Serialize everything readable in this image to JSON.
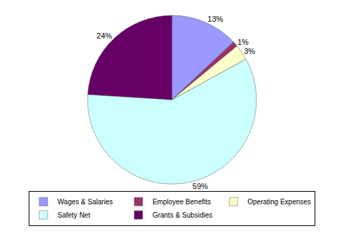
{
  "chart_data": {
    "type": "pie",
    "categories": [
      "Wages & Salaries",
      "Employee Benefits",
      "Operating Expenses",
      "Safety Net",
      "Grants & Subsidies"
    ],
    "values": [
      13,
      1,
      3,
      59,
      24
    ],
    "value_labels": [
      "13%",
      "1%",
      "3%",
      "59%",
      "24%"
    ],
    "colors": [
      "#9999ff",
      "#993366",
      "#ffffcc",
      "#ccffff",
      "#660066"
    ],
    "data_labels": true,
    "legend": "bottom"
  }
}
